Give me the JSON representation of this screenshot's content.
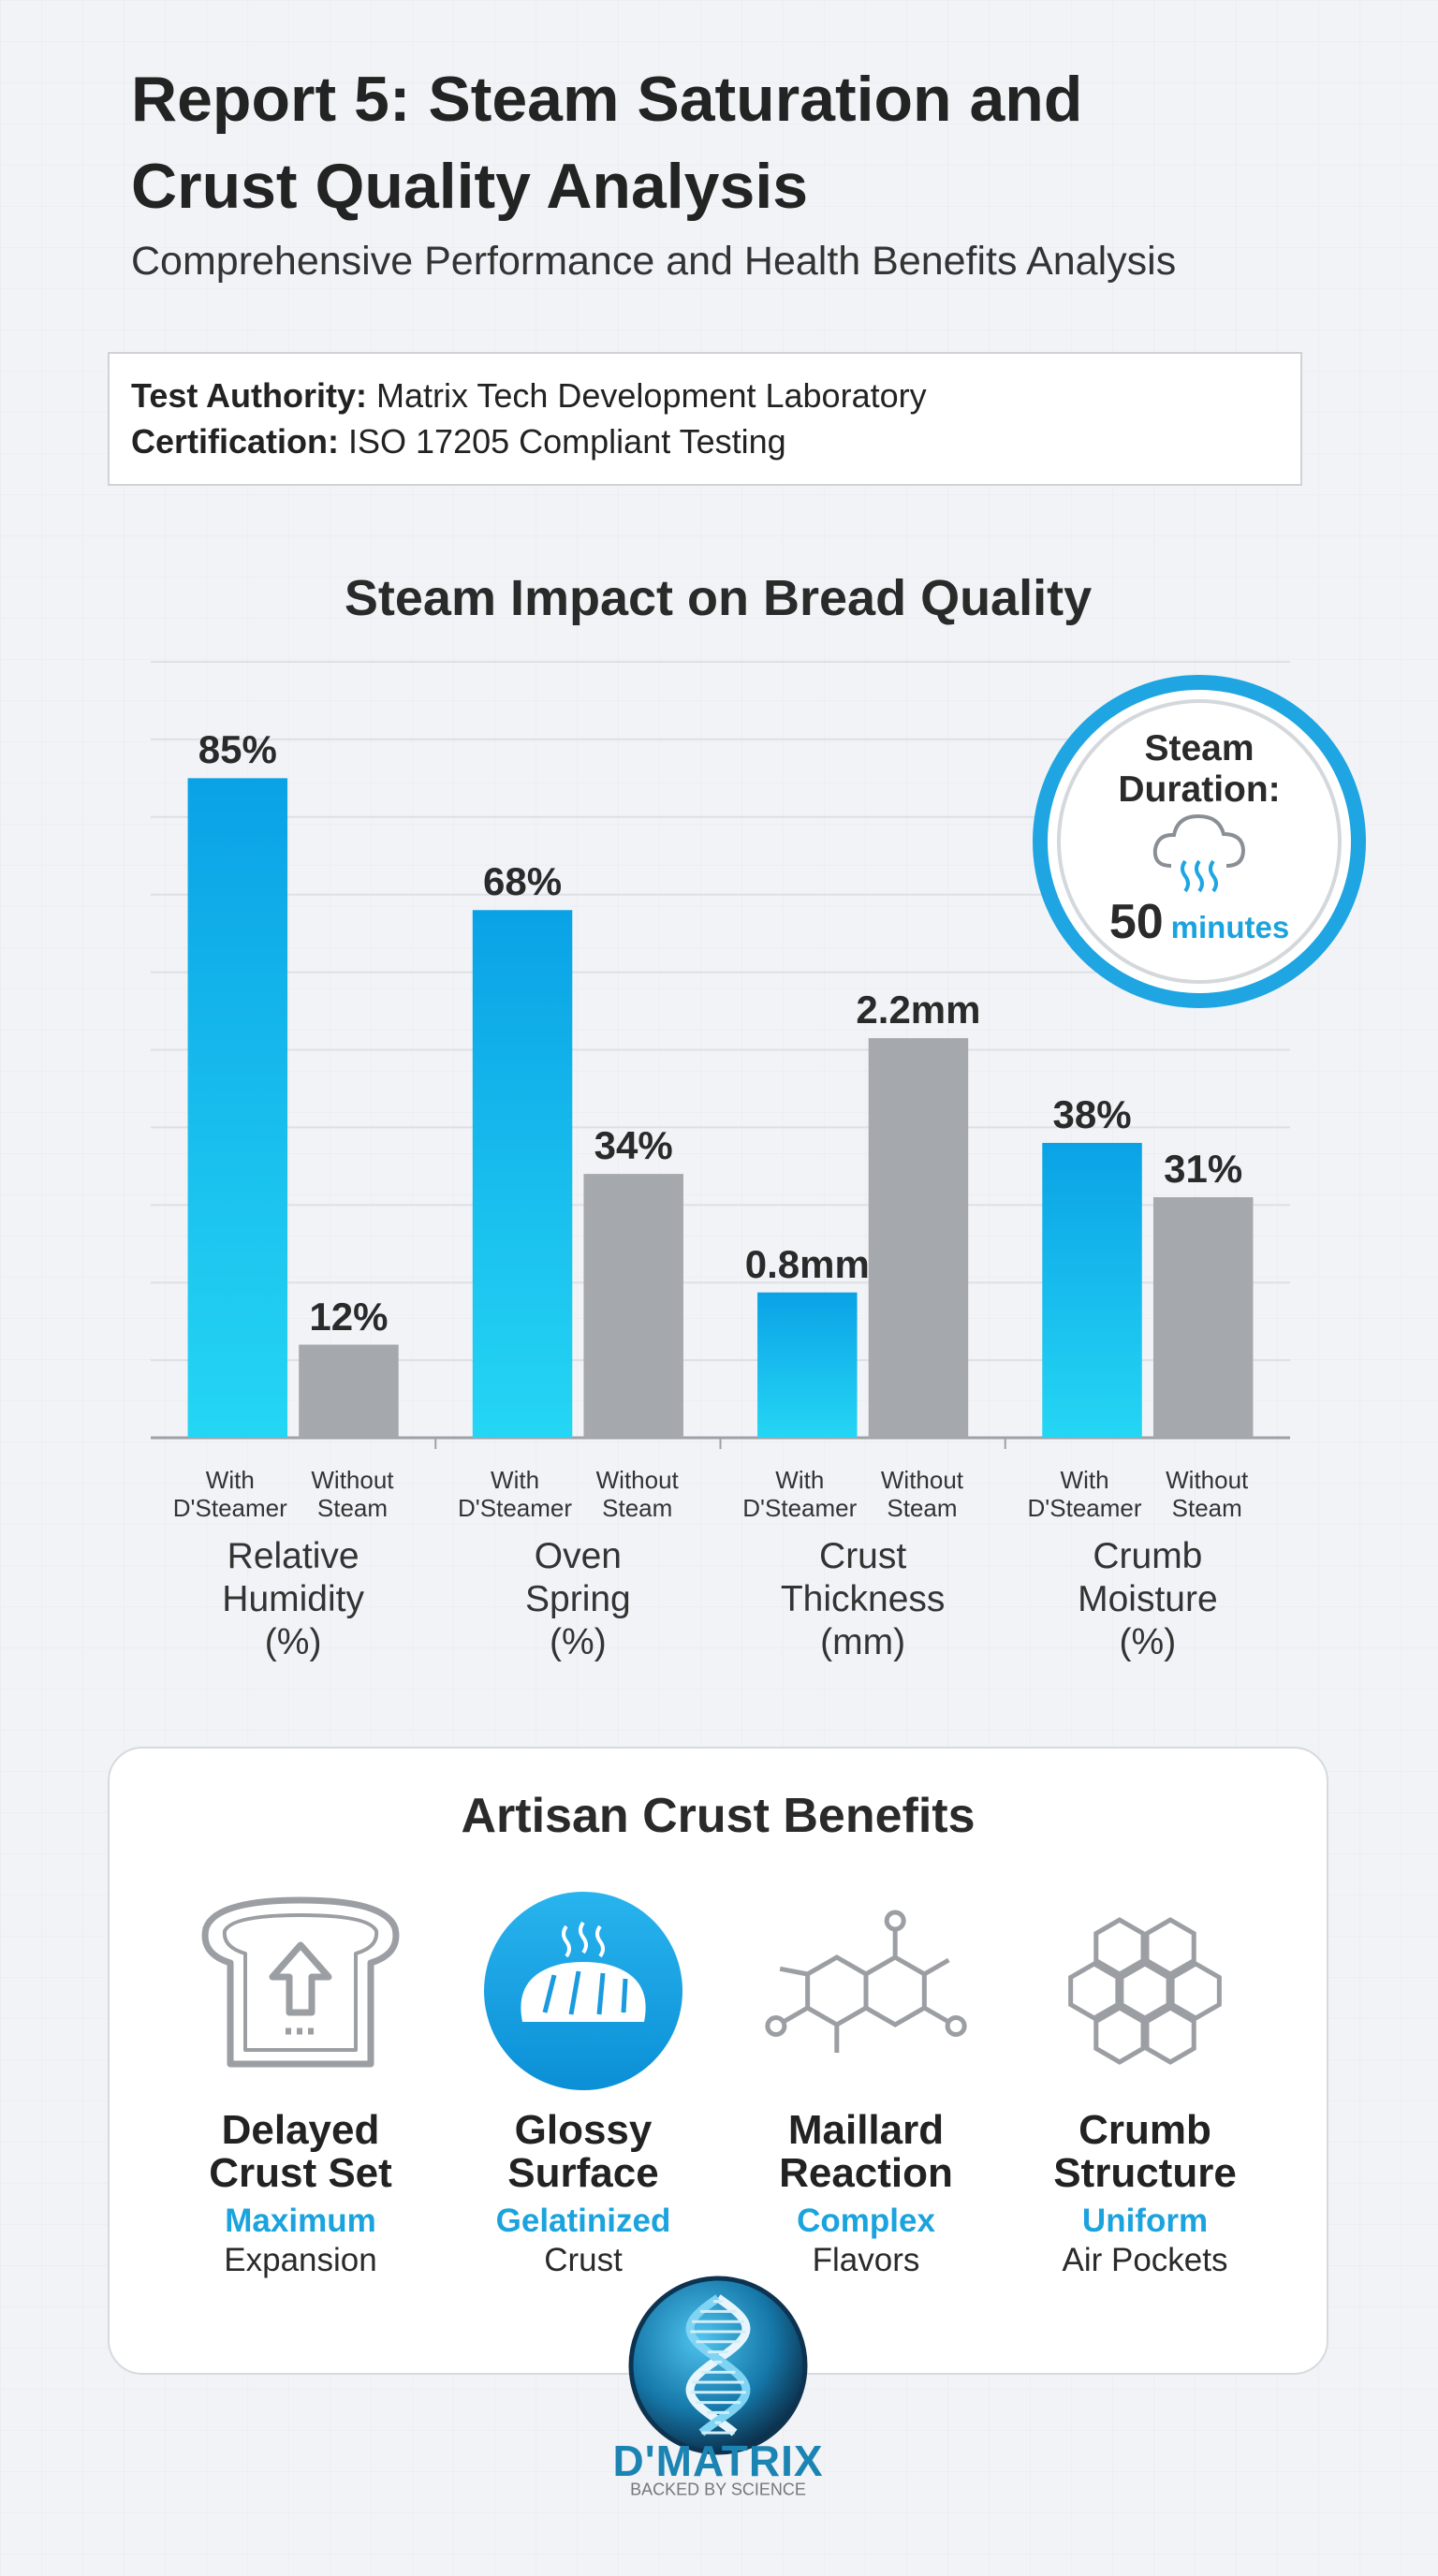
{
  "header": {
    "title": "Report 5: Steam Saturation and Crust Quality Analysis",
    "subtitle": "Comprehensive Performance and Health Benefits Analysis"
  },
  "info": [
    {
      "label": "Test Authority:",
      "value": "Matrix Tech Development Laboratory"
    },
    {
      "label": "Certification:",
      "value": "ISO 17205 Compliant Testing"
    }
  ],
  "chart_data": {
    "type": "bar",
    "title": "Steam Impact on Bread Quality",
    "categories": [
      "Relative Humidity (%)",
      "Oven Spring (%)",
      "Crust Thickness (mm)",
      "Crumb Moisture (%)"
    ],
    "series": [
      {
        "name": "With D'Steamer",
        "color": "#12a8ea",
        "values": [
          85,
          68,
          0.8,
          38
        ],
        "value_labels": [
          "85%",
          "68%",
          "0.8mm",
          "38%"
        ]
      },
      {
        "name": "Without Steam",
        "color": "#a5a8ad",
        "values": [
          12,
          34,
          2.2,
          31
        ],
        "value_labels": [
          "12%",
          "34%",
          "2.2mm",
          "31%"
        ]
      }
    ],
    "ylim": [
      0,
      100
    ],
    "yticks": [
      0,
      10,
      20,
      30,
      40,
      50,
      60,
      70,
      80,
      90,
      100
    ],
    "grid": true
  },
  "steam_duration": {
    "label": "Steam Duration:",
    "value": 50,
    "unit": "minutes"
  },
  "benefits": {
    "title": "Artisan Crust Benefits",
    "items": [
      {
        "title": "Delayed Crust Set",
        "highlight": "Maximum",
        "detail": "Expansion"
      },
      {
        "title": "Glossy Surface",
        "highlight": "Gelatinized",
        "detail": "Crust"
      },
      {
        "title": "Maillard Reaction",
        "highlight": "Complex",
        "detail": "Flavors"
      },
      {
        "title": "Crumb Structure",
        "highlight": "Uniform",
        "detail": "Air Pockets"
      }
    ]
  },
  "logo": {
    "name": "D'MATRIX",
    "tagline": "BACKED BY SCIENCE"
  }
}
